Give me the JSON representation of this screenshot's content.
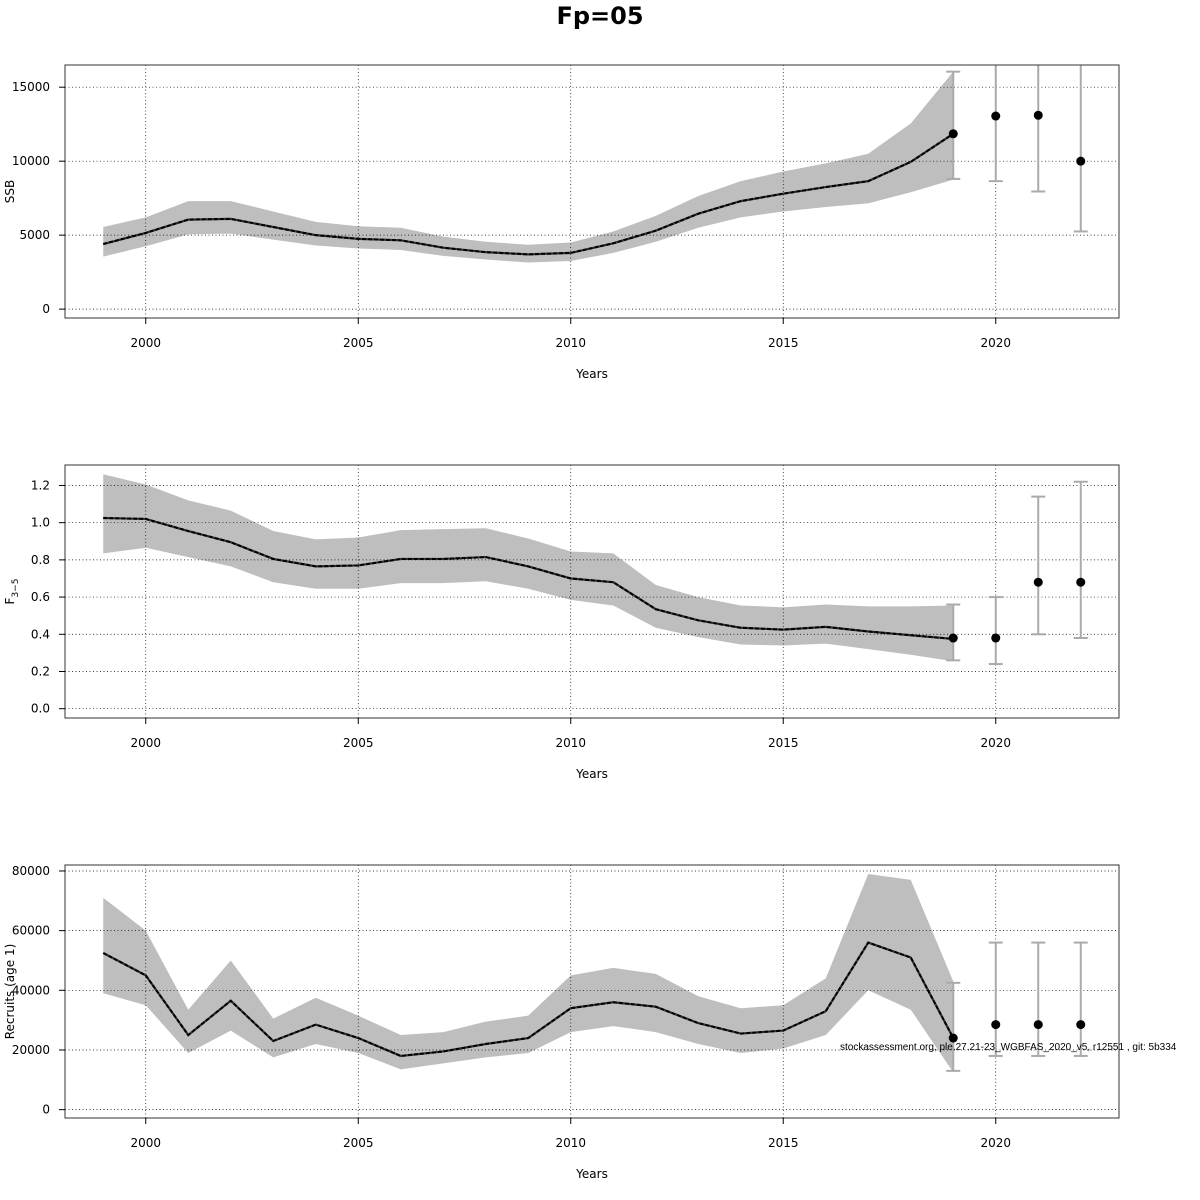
{
  "figure": {
    "title": "Fp=05",
    "footnote": "stockassessment.org, ple.27.21-23_WGBFAS_2020_v5, r12551 , git: 5b334"
  },
  "chart_data": [
    {
      "type": "line",
      "ylabel": "SSB",
      "xlabel": "Years",
      "xlim": [
        1998.1,
        2022.9
      ],
      "ylim": [
        -600,
        16500
      ],
      "x_ticks": [
        2000,
        2005,
        2010,
        2015,
        2020
      ],
      "y_ticks": [
        0,
        5000,
        10000,
        15000
      ],
      "y_tick_labels": [
        "0",
        "5000",
        "10000",
        "15000"
      ],
      "grid": true,
      "band_color": "#bebebe",
      "line_color": "#000000",
      "series": [
        {
          "x": [
            1999,
            2000,
            2001,
            2002,
            2003,
            2004,
            2005,
            2006,
            2007,
            2008,
            2009,
            2010,
            2011,
            2012,
            2013,
            2014,
            2015,
            2016,
            2017,
            2018,
            2019
          ],
          "estimate": [
            4400,
            5150,
            6050,
            6100,
            5550,
            5000,
            4750,
            4650,
            4150,
            3850,
            3700,
            3800,
            4450,
            5300,
            6450,
            7300,
            7800,
            8250,
            8650,
            9950,
            11850
          ],
          "lower": [
            3550,
            4250,
            5050,
            5100,
            4700,
            4300,
            4100,
            4000,
            3600,
            3350,
            3150,
            3250,
            3800,
            4550,
            5500,
            6200,
            6600,
            6900,
            7150,
            7900,
            8750
          ],
          "upper": [
            5550,
            6200,
            7300,
            7300,
            6600,
            5900,
            5600,
            5500,
            4900,
            4550,
            4350,
            4500,
            5250,
            6300,
            7650,
            8650,
            9300,
            9850,
            10500,
            12550,
            16050
          ]
        }
      ],
      "forecast": {
        "x": [
          2019,
          2020,
          2021,
          2022
        ],
        "estimate": [
          11850,
          13050,
          13100,
          10000
        ],
        "lower": [
          8800,
          8650,
          7950,
          5250
        ],
        "upper": [
          16050,
          16600,
          16600,
          16600
        ]
      }
    },
    {
      "type": "line",
      "ylabel": "F3-5",
      "xlabel": "Years",
      "xlim": [
        1998.1,
        2022.9
      ],
      "ylim": [
        -0.05,
        1.31
      ],
      "x_ticks": [
        2000,
        2005,
        2010,
        2015,
        2020
      ],
      "y_ticks": [
        0,
        0.2,
        0.4,
        0.6,
        0.8,
        1.0,
        1.2
      ],
      "y_tick_labels": [
        "0.0",
        "0.2",
        "0.4",
        "0.6",
        "0.8",
        "1.0",
        "1.2"
      ],
      "grid": true,
      "band_color": "#bebebe",
      "line_color": "#000000",
      "series": [
        {
          "x": [
            1999,
            2000,
            2001,
            2002,
            2003,
            2004,
            2005,
            2006,
            2007,
            2008,
            2009,
            2010,
            2011,
            2012,
            2013,
            2014,
            2015,
            2016,
            2017,
            2018,
            2019
          ],
          "estimate": [
            1.025,
            1.02,
            0.955,
            0.895,
            0.805,
            0.765,
            0.77,
            0.805,
            0.805,
            0.815,
            0.765,
            0.7,
            0.68,
            0.535,
            0.475,
            0.435,
            0.425,
            0.44,
            0.415,
            0.395,
            0.375
          ],
          "lower": [
            0.835,
            0.865,
            0.815,
            0.765,
            0.68,
            0.645,
            0.645,
            0.675,
            0.675,
            0.685,
            0.645,
            0.585,
            0.555,
            0.435,
            0.385,
            0.345,
            0.34,
            0.35,
            0.32,
            0.29,
            0.255
          ],
          "upper": [
            1.26,
            1.205,
            1.12,
            1.065,
            0.955,
            0.91,
            0.92,
            0.96,
            0.965,
            0.97,
            0.915,
            0.845,
            0.835,
            0.665,
            0.6,
            0.555,
            0.545,
            0.56,
            0.55,
            0.55,
            0.555
          ]
        }
      ],
      "forecast": {
        "x": [
          2019,
          2020,
          2021,
          2022
        ],
        "estimate": [
          0.38,
          0.38,
          0.68,
          0.68
        ],
        "lower": [
          0.26,
          0.24,
          0.4,
          0.38
        ],
        "upper": [
          0.56,
          0.6,
          1.14,
          1.22
        ]
      }
    },
    {
      "type": "line",
      "ylabel": "Recruits (age 1)",
      "xlabel": "Years",
      "xlim": [
        1998.1,
        2022.9
      ],
      "ylim": [
        -2800,
        82000
      ],
      "x_ticks": [
        2000,
        2005,
        2010,
        2015,
        2020
      ],
      "y_ticks": [
        0,
        20000,
        40000,
        60000,
        80000
      ],
      "y_tick_labels": [
        "0",
        "20000",
        "40000",
        "60000",
        "80000"
      ],
      "grid": true,
      "band_color": "#bebebe",
      "line_color": "#000000",
      "series": [
        {
          "x": [
            1999,
            2000,
            2001,
            2002,
            2003,
            2004,
            2005,
            2006,
            2007,
            2008,
            2009,
            2010,
            2011,
            2012,
            2013,
            2014,
            2015,
            2016,
            2017,
            2018,
            2019
          ],
          "estimate": [
            52500,
            45000,
            25000,
            36500,
            23000,
            28500,
            24000,
            18000,
            19500,
            22000,
            24000,
            34000,
            36000,
            34500,
            29000,
            25500,
            26500,
            33000,
            56000,
            51000,
            24000
          ],
          "lower": [
            39000,
            35000,
            19000,
            26500,
            17500,
            22000,
            19000,
            13500,
            15500,
            17500,
            19000,
            26000,
            28000,
            26000,
            22000,
            19000,
            20500,
            25000,
            40000,
            33500,
            12500
          ],
          "upper": [
            71000,
            60000,
            33500,
            50000,
            30500,
            37500,
            31500,
            25000,
            26000,
            29500,
            31500,
            45000,
            47500,
            45500,
            38000,
            34000,
            35000,
            44000,
            79000,
            77000,
            43000
          ]
        }
      ],
      "forecast": {
        "x": [
          2019,
          2020,
          2021,
          2022
        ],
        "estimate": [
          24000,
          28500,
          28500,
          28500
        ],
        "lower": [
          13000,
          18000,
          18000,
          18000
        ],
        "upper": [
          42500,
          56000,
          56000,
          56000
        ]
      }
    }
  ]
}
